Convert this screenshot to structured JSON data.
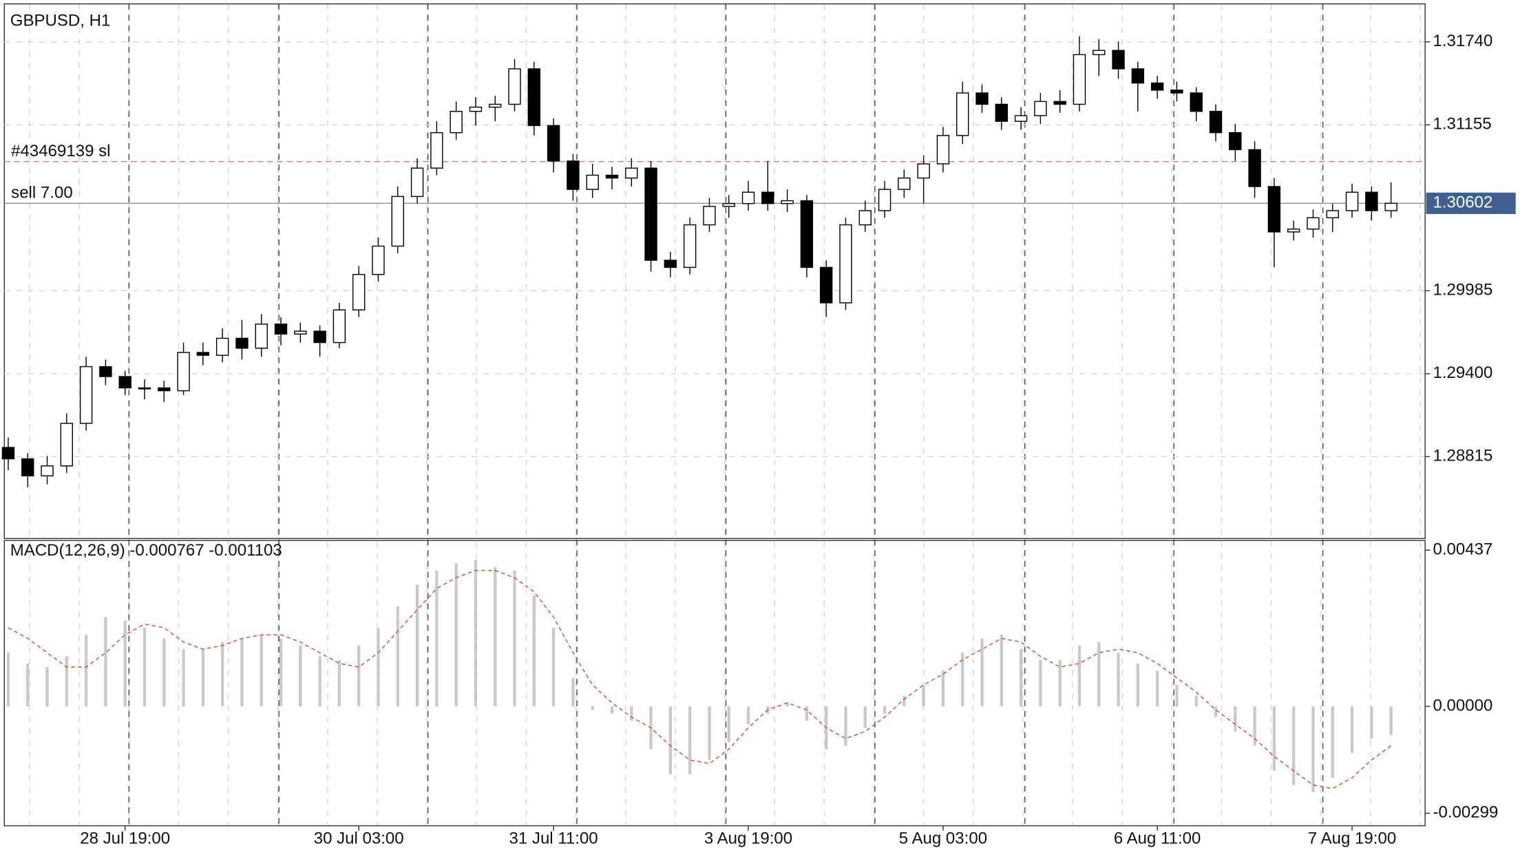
{
  "chart_data": [
    {
      "type": "candlestick",
      "title": "GBPUSD, H1",
      "xlim": [
        -0.5,
        71.5
      ],
      "ylim": [
        1.28238,
        1.32008
      ],
      "yticks": [
        {
          "value": 1.3174,
          "label": "1.31740"
        },
        1.31155,
        1.29985,
        {
          "value": 1.294,
          "label": "1.29400"
        },
        1.28815
      ],
      "grid": true,
      "up_color": "#ffffff",
      "down_color": "#000000",
      "edge_color": "#000000",
      "open": [
        1.2888,
        1.288,
        1.2868,
        1.2875,
        1.2905,
        1.2945,
        1.2938,
        1.293,
        1.293,
        1.2928,
        1.2955,
        1.2953,
        1.2965,
        1.2958,
        1.2975,
        1.2968,
        1.297,
        1.2962,
        1.2985,
        1.301,
        1.303,
        1.3065,
        1.3085,
        1.311,
        1.3125,
        1.3128,
        1.313,
        1.3155,
        1.3115,
        1.309,
        1.307,
        1.308,
        1.3078,
        1.3085,
        1.302,
        1.3015,
        1.3045,
        1.3058,
        1.306,
        1.3068,
        1.306,
        1.3062,
        1.3015,
        1.299,
        1.3045,
        1.3055,
        1.307,
        1.3078,
        1.3088,
        1.3108,
        1.3138,
        1.313,
        1.3118,
        1.3122,
        1.3132,
        1.313,
        1.3165,
        1.3168,
        1.3155,
        1.3145,
        1.314,
        1.3138,
        1.3125,
        1.311,
        1.3098,
        1.3072,
        1.304,
        1.3042,
        1.305,
        1.3055,
        1.3068,
        1.3055
      ],
      "high": [
        1.2895,
        1.2884,
        1.2882,
        1.2912,
        1.2952,
        1.295,
        1.2942,
        1.2936,
        1.2935,
        1.2962,
        1.2962,
        1.2972,
        1.2978,
        1.2982,
        1.298,
        1.2976,
        1.2974,
        1.299,
        1.3016,
        1.3036,
        1.3072,
        1.3092,
        1.3118,
        1.3132,
        1.3135,
        1.3136,
        1.3162,
        1.316,
        1.312,
        1.3095,
        1.3088,
        1.3086,
        1.3092,
        1.309,
        1.3026,
        1.305,
        1.3064,
        1.3066,
        1.3076,
        1.309,
        1.307,
        1.3066,
        1.302,
        1.305,
        1.3062,
        1.3076,
        1.3084,
        1.3094,
        1.3114,
        1.3146,
        1.3144,
        1.3135,
        1.3128,
        1.3138,
        1.314,
        1.3178,
        1.3176,
        1.3174,
        1.316,
        1.315,
        1.3146,
        1.3142,
        1.313,
        1.3116,
        1.3104,
        1.3078,
        1.3048,
        1.3056,
        1.306,
        1.3074,
        1.3072,
        1.3075
      ],
      "low": [
        1.2872,
        1.286,
        1.2862,
        1.287,
        1.29,
        1.2932,
        1.2925,
        1.2922,
        1.292,
        1.2925,
        1.2946,
        1.2948,
        1.295,
        1.2952,
        1.296,
        1.2962,
        1.2952,
        1.2958,
        1.298,
        1.3005,
        1.3025,
        1.306,
        1.308,
        1.3105,
        1.3115,
        1.3118,
        1.3125,
        1.3108,
        1.3082,
        1.3062,
        1.3064,
        1.307,
        1.3072,
        1.3012,
        1.3008,
        1.301,
        1.304,
        1.305,
        1.3055,
        1.3055,
        1.3054,
        1.3008,
        1.298,
        1.2985,
        1.304,
        1.305,
        1.3064,
        1.306,
        1.3082,
        1.3102,
        1.3124,
        1.3112,
        1.3112,
        1.3116,
        1.3124,
        1.3125,
        1.315,
        1.3148,
        1.3125,
        1.3134,
        1.3132,
        1.3118,
        1.3104,
        1.309,
        1.3064,
        1.3015,
        1.3034,
        1.3036,
        1.304,
        1.305,
        1.3048,
        1.305
      ],
      "close": [
        1.288,
        1.2868,
        1.2875,
        1.2905,
        1.2945,
        1.2938,
        1.293,
        1.293,
        1.2928,
        1.2955,
        1.2953,
        1.2965,
        1.2958,
        1.2975,
        1.2968,
        1.297,
        1.2962,
        1.2985,
        1.301,
        1.303,
        1.3065,
        1.3085,
        1.311,
        1.3125,
        1.3128,
        1.313,
        1.3155,
        1.3115,
        1.309,
        1.307,
        1.308,
        1.3078,
        1.3085,
        1.302,
        1.3015,
        1.3045,
        1.3058,
        1.306,
        1.3068,
        1.306,
        1.3062,
        1.3015,
        1.299,
        1.3045,
        1.3055,
        1.307,
        1.3078,
        1.3088,
        1.3108,
        1.3138,
        1.313,
        1.3118,
        1.3122,
        1.3132,
        1.313,
        1.3165,
        1.3168,
        1.3155,
        1.3145,
        1.314,
        1.3138,
        1.3125,
        1.311,
        1.3098,
        1.3072,
        1.304,
        1.3042,
        1.305,
        1.3055,
        1.3068,
        1.3055,
        1.30602
      ],
      "annotations": [
        {
          "text": "#43469139 sl",
          "value": 1.30896,
          "color": "#e07a6a"
        },
        {
          "text": "sell 7.00",
          "value": 1.30602,
          "color": "#7f9a8c"
        }
      ],
      "price_badge_color": "#3e5f8f"
    },
    {
      "type": "macd",
      "title": "MACD(12,26,9) -0.000767 -0.001103",
      "xlim": [
        -0.5,
        71.5
      ],
      "ylim": [
        -0.00334,
        0.00464
      ],
      "yticks": [
        0.00437,
        {
          "value": 0,
          "label": "0.00000"
        },
        -0.00299
      ],
      "xticks": [
        {
          "value": 6,
          "label": "28 Jul 19:00"
        },
        {
          "value": 18,
          "label": "30 Jul 03:00"
        },
        {
          "value": 28,
          "label": "31 Jul 11:00"
        },
        {
          "value": 38,
          "label": "3 Aug 19:00"
        },
        {
          "value": 48,
          "label": "5 Aug 03:00"
        },
        {
          "value": 59,
          "label": "6 Aug 11:00"
        },
        {
          "value": 69,
          "label": "7 Aug 19:00"
        }
      ],
      "histogram_color": "#c8c8c8",
      "signal_color": "#d9453a",
      "histogram": [
        0.0015,
        0.0012,
        0.0011,
        0.0014,
        0.002,
        0.0025,
        0.0024,
        0.0022,
        0.0019,
        0.0016,
        0.0016,
        0.0018,
        0.0019,
        0.002,
        0.0019,
        0.0017,
        0.0014,
        0.0013,
        0.0017,
        0.0022,
        0.0028,
        0.0034,
        0.0038,
        0.004,
        0.0041,
        0.0039,
        0.0038,
        0.0031,
        0.0022,
        0.0008,
        -0.0001,
        -0.0002,
        -0.0004,
        -0.0012,
        -0.0019,
        -0.0019,
        -0.0015,
        -0.001,
        -0.0005,
        -0.0002,
        0.0001,
        -0.0004,
        -0.0012,
        -0.0011,
        -0.0006,
        -0.0002,
        0.0003,
        0.0006,
        0.001,
        0.0015,
        0.0019,
        0.002,
        0.0016,
        0.0013,
        0.0013,
        0.0017,
        0.0018,
        0.0015,
        0.0012,
        0.001,
        0.0006,
        0.0003,
        -0.0003,
        -0.0007,
        -0.0011,
        -0.0018,
        -0.0022,
        -0.0024,
        -0.002,
        -0.0013,
        -0.0009,
        -0.0008
      ],
      "signal": [
        0.0022,
        0.0019,
        0.0015,
        0.0011,
        0.0011,
        0.0015,
        0.002,
        0.0023,
        0.0022,
        0.0018,
        0.0016,
        0.0017,
        0.0019,
        0.002,
        0.002,
        0.0018,
        0.0015,
        0.0012,
        0.0011,
        0.0015,
        0.0021,
        0.0027,
        0.0033,
        0.0036,
        0.0038,
        0.0038,
        0.0036,
        0.0032,
        0.0025,
        0.0015,
        0.0006,
        0.0001,
        -0.0003,
        -0.0006,
        -0.0011,
        -0.0015,
        -0.0016,
        -0.0012,
        -0.0006,
        -0.0001,
        0.0001,
        -0.0001,
        -0.0006,
        -0.0009,
        -0.0007,
        -0.0003,
        0.0002,
        0.0006,
        0.0009,
        0.0013,
        0.0016,
        0.0019,
        0.0018,
        0.0014,
        0.0011,
        0.0012,
        0.0015,
        0.0016,
        0.0015,
        0.0012,
        0.0008,
        0.0004,
        -0.0001,
        -0.0005,
        -0.0009,
        -0.0014,
        -0.0018,
        -0.0022,
        -0.0023,
        -0.002,
        -0.0015,
        -0.0011
      ]
    }
  ]
}
